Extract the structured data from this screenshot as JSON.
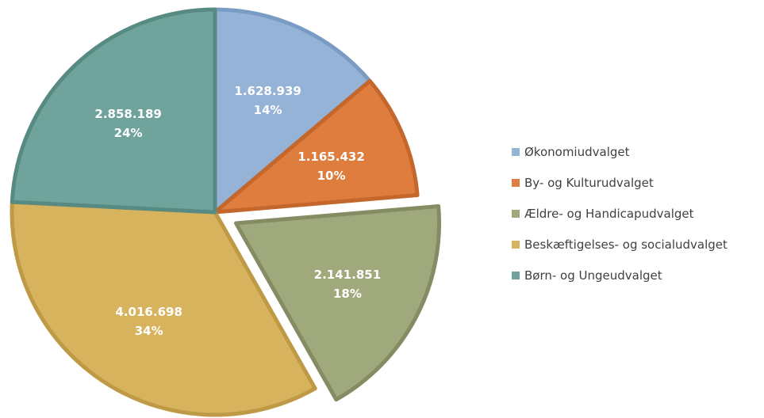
{
  "chart_data": {
    "type": "pie",
    "slices": [
      {
        "name": "Økonomiudvalget",
        "value": 1628939,
        "value_label": "1.628.939",
        "percent_label": "14%",
        "color": "#95b3d7",
        "border": "#7a9cc4"
      },
      {
        "name": "By- og Kulturudvalget",
        "value": 1165432,
        "value_label": "1.165.432",
        "percent_label": "10%",
        "color": "#de7d3e",
        "border": "#c4672c"
      },
      {
        "name": "Ældre- og Handicapudvalget",
        "value": 2141851,
        "value_label": "2.141.851",
        "percent_label": "18%",
        "color": "#a0a97c",
        "border": "#838c62",
        "exploded": true
      },
      {
        "name": "Beskæftigelses- og socialudvalget",
        "value": 4016698,
        "value_label": "4.016.698",
        "percent_label": "34%",
        "color": "#d8b35e",
        "border": "#bf9a46"
      },
      {
        "name": "Børn- og Ungeudvalget",
        "value": 2858189,
        "value_label": "2.858.189",
        "percent_label": "24%",
        "color": "#6fa39b",
        "border": "#578a82"
      }
    ],
    "start_angle": "12 o'clock",
    "direction": "clockwise",
    "legend_position": "right"
  }
}
